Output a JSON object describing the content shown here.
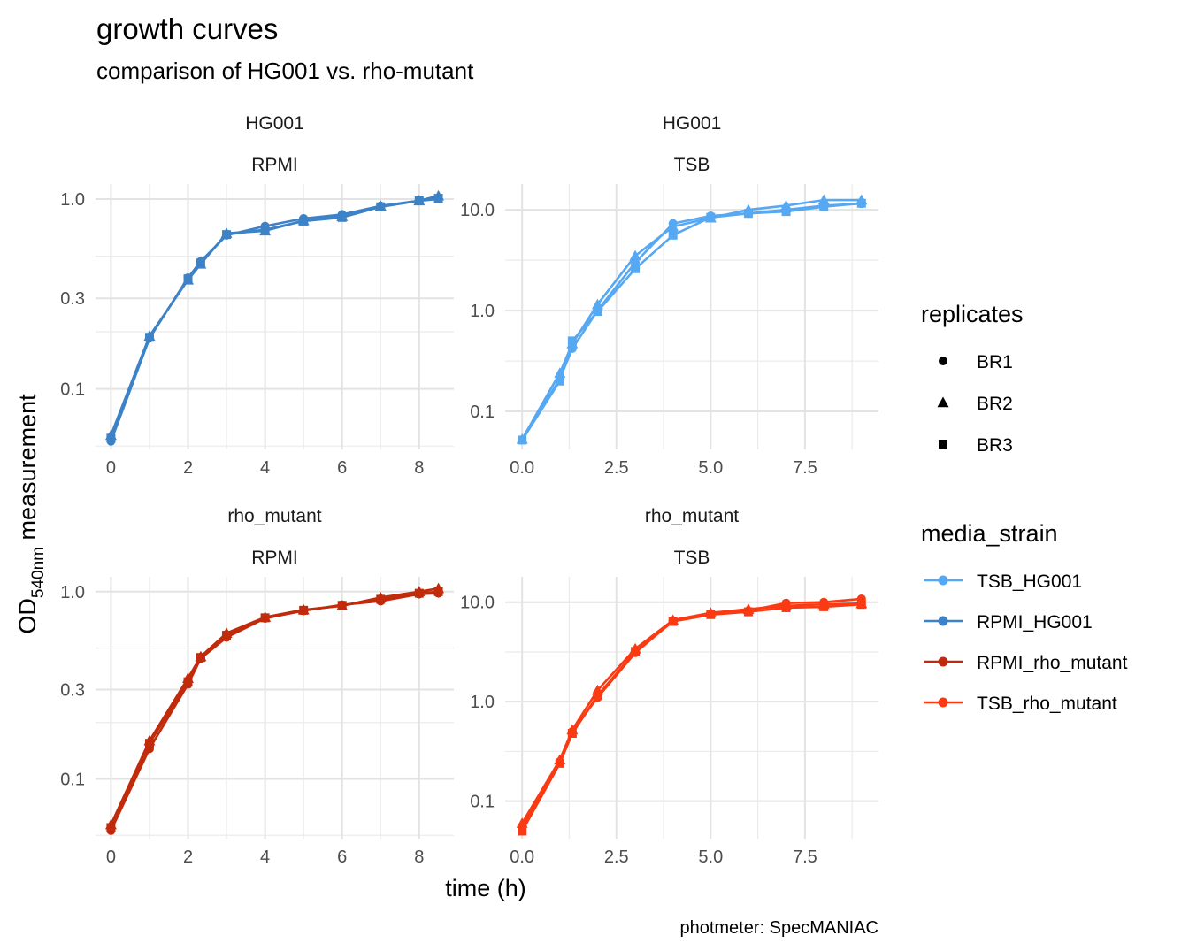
{
  "chart_data": {
    "type": "line",
    "title": "growth curves",
    "subtitle": "comparison of HG001 vs. rho-mutant",
    "xlabel": "time (h)",
    "ylabel_main": "OD",
    "ylabel_sub": "540nm",
    "ylabel_rest": " measurement",
    "caption": "photmeter: SpecMANIAC",
    "y_scale": "log10",
    "grid": true,
    "legend_position": "right",
    "legends": {
      "shape": {
        "title": "replicates",
        "items": [
          {
            "label": "BR1",
            "shape": "circle"
          },
          {
            "label": "BR2",
            "shape": "triangle"
          },
          {
            "label": "BR3",
            "shape": "square"
          }
        ]
      },
      "color": {
        "title": "media_strain",
        "items": [
          {
            "label": "TSB_HG001",
            "color": "#56a8f2"
          },
          {
            "label": "RPMI_HG001",
            "color": "#3d82c6"
          },
          {
            "label": "RPMI_rho_mutant",
            "color": "#c12a0b"
          },
          {
            "label": "TSB_rho_mutant",
            "color": "#fa3a12"
          }
        ]
      }
    },
    "panels": [
      {
        "strain": "HG001",
        "media": "RPMI",
        "media_strain": "RPMI_HG001",
        "color": "#3d82c6",
        "xlim": [
          -0.4,
          8.9
        ],
        "xticks": [
          0,
          2,
          4,
          6,
          8
        ],
        "xtick_labels": [
          "0",
          "2",
          "4",
          "6",
          "8"
        ],
        "ylim": [
          0.048,
          1.2
        ],
        "yticks": [
          0.1,
          0.3,
          1.0
        ],
        "ytick_labels": [
          "0.1",
          "0.3",
          "1.0"
        ],
        "yminor": [
          0.05,
          0.2,
          0.5
        ],
        "series": [
          {
            "name": "BR1",
            "shape": "circle",
            "x": [
              0,
              1,
              2,
              2.33,
              3,
              4,
              5,
              6,
              7,
              8,
              8.5
            ],
            "y": [
              0.053,
              0.185,
              0.385,
              0.47,
              0.645,
              0.72,
              0.79,
              0.83,
              0.92,
              0.98,
              1.0
            ]
          },
          {
            "name": "BR2",
            "shape": "triangle",
            "x": [
              0,
              1,
              2,
              2.33,
              3,
              4,
              5,
              6,
              7,
              8,
              8.5
            ],
            "y": [
              0.057,
              0.19,
              0.375,
              0.455,
              0.66,
              0.68,
              0.77,
              0.81,
              0.92,
              0.98,
              1.04
            ]
          },
          {
            "name": "BR3",
            "shape": "square",
            "x": [
              0,
              1,
              2,
              2.33,
              3,
              4,
              5,
              6,
              7,
              8,
              8.5
            ],
            "y": [
              0.055,
              0.187,
              0.38,
              0.46,
              0.65,
              0.69,
              0.765,
              0.8,
              0.91,
              0.98,
              1.01
            ]
          }
        ]
      },
      {
        "strain": "HG001",
        "media": "TSB",
        "media_strain": "TSB_HG001",
        "color": "#56a8f2",
        "xlim": [
          -0.45,
          9.45
        ],
        "xticks": [
          0,
          2.5,
          5,
          7.5
        ],
        "xtick_labels": [
          "0.0",
          "2.5",
          "5.0",
          "7.5"
        ],
        "ylim": [
          0.042,
          18
        ],
        "yticks": [
          0.1,
          1.0,
          10.0
        ],
        "ytick_labels": [
          "0.1",
          "1.0",
          "10.0"
        ],
        "yminor": [
          0.316,
          3.16
        ],
        "series": [
          {
            "name": "BR1",
            "shape": "circle",
            "x": [
              0,
              1,
              1.33,
              2,
              3,
              4,
              5,
              6,
              7,
              8,
              9
            ],
            "y": [
              0.052,
              0.21,
              0.42,
              1.0,
              3.0,
              7.3,
              8.7,
              9.2,
              10.0,
              11.0,
              11.5
            ]
          },
          {
            "name": "BR2",
            "shape": "triangle",
            "x": [
              0,
              1,
              1.33,
              2,
              3,
              4,
              5,
              6,
              7,
              8,
              9
            ],
            "y": [
              0.053,
              0.24,
              0.47,
              1.15,
              3.5,
              6.8,
              8.3,
              10.0,
              11.0,
              12.5,
              12.5
            ]
          },
          {
            "name": "BR3",
            "shape": "square",
            "x": [
              0,
              1,
              1.33,
              2,
              3,
              4,
              5,
              6,
              7,
              8,
              9
            ],
            "y": [
              0.052,
              0.2,
              0.5,
              0.98,
              2.6,
              5.6,
              8.4,
              9.2,
              9.6,
              10.7,
              11.6
            ]
          }
        ]
      },
      {
        "strain": "rho_mutant",
        "media": "RPMI",
        "media_strain": "RPMI_rho_mutant",
        "color": "#c12a0b",
        "xlim": [
          -0.4,
          8.9
        ],
        "xticks": [
          0,
          2,
          4,
          6,
          8
        ],
        "xtick_labels": [
          "0",
          "2",
          "4",
          "6",
          "8"
        ],
        "ylim": [
          0.048,
          1.2
        ],
        "yticks": [
          0.1,
          0.3,
          1.0
        ],
        "ytick_labels": [
          "0.1",
          "0.3",
          "1.0"
        ],
        "yminor": [
          0.05,
          0.2,
          0.5
        ],
        "series": [
          {
            "name": "BR1",
            "shape": "circle",
            "x": [
              0,
              1,
              2,
              2.33,
              3,
              4,
              5,
              6,
              7,
              8,
              8.5
            ],
            "y": [
              0.053,
              0.145,
              0.32,
              0.44,
              0.57,
              0.72,
              0.79,
              0.85,
              0.89,
              0.97,
              0.98
            ]
          },
          {
            "name": "BR2",
            "shape": "triangle",
            "x": [
              0,
              1,
              2,
              2.33,
              3,
              4,
              5,
              6,
              7,
              8,
              8.5
            ],
            "y": [
              0.057,
              0.16,
              0.345,
              0.45,
              0.6,
              0.73,
              0.8,
              0.84,
              0.93,
              1.0,
              1.04
            ]
          },
          {
            "name": "BR3",
            "shape": "square",
            "x": [
              0,
              1,
              2,
              2.33,
              3,
              4,
              5,
              6,
              7,
              8,
              8.5
            ],
            "y": [
              0.055,
              0.155,
              0.33,
              0.445,
              0.585,
              0.725,
              0.795,
              0.845,
              0.91,
              0.98,
              1.0
            ]
          }
        ]
      },
      {
        "strain": "rho_mutant",
        "media": "TSB",
        "media_strain": "TSB_rho_mutant",
        "color": "#fa3a12",
        "xlim": [
          -0.45,
          9.45
        ],
        "xticks": [
          0,
          2.5,
          5,
          7.5
        ],
        "xtick_labels": [
          "0.0",
          "2.5",
          "5.0",
          "7.5"
        ],
        "ylim": [
          0.042,
          18
        ],
        "yticks": [
          0.1,
          1.0,
          10.0
        ],
        "ytick_labels": [
          "0.1",
          "1.0",
          "10.0"
        ],
        "yminor": [
          0.316,
          3.16
        ],
        "series": [
          {
            "name": "BR1",
            "shape": "circle",
            "x": [
              0,
              1,
              1.33,
              2,
              3,
              4,
              5,
              6,
              7,
              8,
              9
            ],
            "y": [
              0.055,
              0.25,
              0.5,
              1.1,
              3.1,
              6.5,
              7.6,
              8.2,
              9.8,
              10.0,
              10.8
            ]
          },
          {
            "name": "BR2",
            "shape": "triangle",
            "x": [
              0,
              1,
              1.33,
              2,
              3,
              4,
              5,
              6,
              7,
              8,
              9
            ],
            "y": [
              0.06,
              0.26,
              0.52,
              1.3,
              3.4,
              6.6,
              7.8,
              8.5,
              9.2,
              9.5,
              9.7
            ]
          },
          {
            "name": "BR3",
            "shape": "square",
            "x": [
              0,
              1,
              1.33,
              2,
              3,
              4,
              5,
              6,
              7,
              8,
              9
            ],
            "y": [
              0.05,
              0.24,
              0.48,
              1.15,
              3.2,
              6.4,
              7.5,
              8.0,
              8.8,
              9.0,
              9.5
            ]
          }
        ]
      }
    ]
  }
}
